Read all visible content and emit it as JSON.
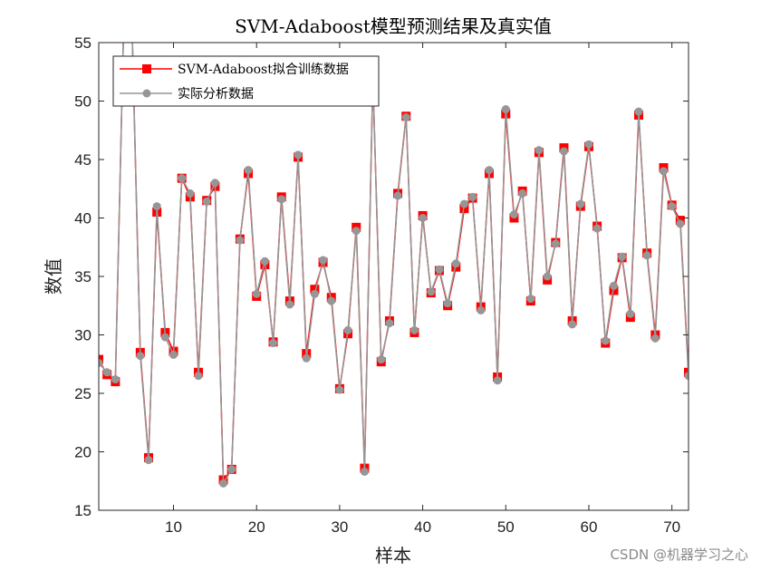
{
  "chart_data": {
    "type": "line",
    "title": "SVM-Adaboost模型预测结果及真实值",
    "xlabel": "样本",
    "ylabel": "数值",
    "xlim": [
      1,
      72
    ],
    "ylim": [
      15,
      55
    ],
    "xticks": [
      10,
      20,
      30,
      40,
      50,
      60,
      70
    ],
    "yticks": [
      15,
      20,
      25,
      30,
      35,
      40,
      45,
      50,
      55
    ],
    "legend_position": "top-left",
    "colors": {
      "fit": "#ff0000",
      "actual": "#969696"
    },
    "x": [
      1,
      2,
      3,
      4,
      5,
      6,
      7,
      8,
      9,
      10,
      11,
      12,
      13,
      14,
      15,
      16,
      17,
      18,
      19,
      20,
      21,
      22,
      23,
      24,
      25,
      26,
      27,
      28,
      29,
      30,
      31,
      32,
      33,
      34,
      35,
      36,
      37,
      38,
      39,
      40,
      41,
      42,
      43,
      44,
      45,
      46,
      47,
      48,
      49,
      50,
      51,
      52,
      53,
      54,
      55,
      56,
      57,
      58,
      59,
      60,
      61,
      62,
      63,
      64,
      65,
      66,
      67,
      68,
      69,
      70,
      71,
      72
    ],
    "series": [
      {
        "name": "SVM-Adaboost拟合训练数据",
        "marker": "square",
        "values": [
          27.9,
          26.6,
          26.0,
          56.5,
          56.5,
          28.5,
          19.5,
          40.5,
          30.2,
          28.6,
          43.4,
          41.8,
          26.8,
          41.5,
          42.7,
          17.6,
          18.5,
          38.2,
          43.8,
          33.3,
          36.0,
          29.4,
          41.8,
          32.9,
          45.2,
          28.4,
          33.9,
          36.2,
          33.2,
          25.4,
          30.1,
          39.2,
          18.6,
          52.0,
          27.7,
          31.2,
          42.1,
          48.7,
          30.2,
          40.2,
          33.6,
          35.5,
          32.5,
          35.8,
          40.8,
          41.7,
          32.4,
          43.8,
          26.4,
          48.9,
          40.0,
          42.3,
          32.9,
          45.6,
          34.7,
          37.9,
          46.0,
          31.2,
          41.0,
          46.1,
          39.3,
          29.3,
          33.8,
          36.6,
          31.5,
          48.8,
          37.0,
          30.0,
          44.3,
          41.1,
          39.8,
          26.8
        ]
      },
      {
        "name": "实际分析数据",
        "marker": "circle",
        "values": [
          27.6,
          26.8,
          26.2,
          56.5,
          56.5,
          28.2,
          19.3,
          41.0,
          29.8,
          28.3,
          43.4,
          42.1,
          26.5,
          41.4,
          43.0,
          17.3,
          18.5,
          38.1,
          44.1,
          33.5,
          36.3,
          29.3,
          41.6,
          32.6,
          45.4,
          28.0,
          33.5,
          36.4,
          32.9,
          25.3,
          30.4,
          38.9,
          18.3,
          52.0,
          27.9,
          31.0,
          41.9,
          48.6,
          30.4,
          40.0,
          33.7,
          35.6,
          32.7,
          36.1,
          41.2,
          41.8,
          32.1,
          44.1,
          26.1,
          49.3,
          40.3,
          42.1,
          33.1,
          45.8,
          35.0,
          37.8,
          45.7,
          30.9,
          41.2,
          46.3,
          39.1,
          29.5,
          34.2,
          36.7,
          31.8,
          49.1,
          36.8,
          29.7,
          44.0,
          41.0,
          39.5,
          26.5
        ]
      }
    ]
  },
  "watermark": "CSDN @机器学习之心"
}
